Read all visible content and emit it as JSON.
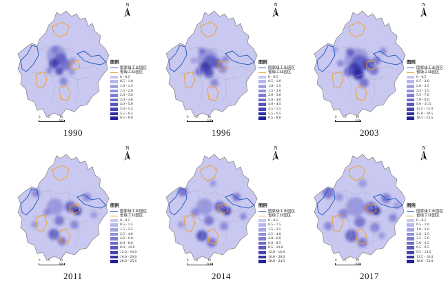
{
  "colors": {
    "base_fill": "#c9c8f0",
    "boundary": "#8a8a8a",
    "national_zone": "#2a5fbf",
    "provincial_zone": "#f0a030",
    "density_ramp": [
      "#c9c8f0",
      "#b7b6ea",
      "#a5a3e3",
      "#9290dc",
      "#7f7dd3",
      "#6d6acb",
      "#5a58c1",
      "#4746b6",
      "#3433aa",
      "#22219c",
      "#14148c"
    ]
  },
  "legend_common": {
    "title": "图例",
    "national_label": "国家级工业园区",
    "provincial_label": "省级工业园区"
  },
  "scale_bar": {
    "ticks": [
      "0",
      "5",
      "10 km"
    ]
  },
  "north_arrow": {
    "label": "N"
  },
  "panels": [
    {
      "year": "1990",
      "classes": [
        "0 - 0.5",
        "0.5 - 1.0",
        "1.0 - 1.5",
        "1.5 - 2.0",
        "2.0 - 3.0",
        "3.0 - 4.0",
        "4.0 - 5.0",
        "5.0 - 5.5",
        "5.5 - 6.5",
        "6.5 - 8.0"
      ]
    },
    {
      "year": "1996",
      "classes": [
        "0 - 0.5",
        "0.5 - 1.0",
        "1.0 - 1.5",
        "1.5 - 2.0",
        "2.0 - 3.0",
        "3.0 - 4.0",
        "4.0 - 4.5",
        "4.5 - 5.5",
        "5.5 - 6.5",
        "6.5 - 8.0"
      ]
    },
    {
      "year": "2003",
      "classes": [
        "0 - 0.5",
        "0.5 - 2.0",
        "2.0 - 3.5",
        "3.5 - 5.5",
        "5.5 - 7.0",
        "7.0 - 9.0",
        "9.0 - 11.5",
        "11.5 - 15.0",
        "15.0 - 18.5",
        "18.5 - 23.5"
      ]
    },
    {
      "year": "2011",
      "classes": [
        "0 - 0.5",
        "0.5 - 1.5",
        "1.5 - 2.5",
        "2.5 - 4.0",
        "4.0 - 6.0",
        "6.0 - 8.0",
        "8.0 - 12.0",
        "12.0 - 16.0",
        "16.0 - 20.0",
        "20.0 - 25.0"
      ]
    },
    {
      "year": "2014",
      "classes": [
        "0 - 0.5",
        "0.5 - 1.5",
        "1.5 - 2.5",
        "2.5 - 4.0",
        "4.0 - 6.0",
        "6.0 - 8.5",
        "8.5 - 12.0",
        "12.0 - 16.0",
        "16.0 - 20.0",
        "20.0 - 24.5"
      ]
    },
    {
      "year": "2017",
      "classes": [
        "0 - 0.5",
        "0.5 - 1.0",
        "1.0 - 2.0",
        "2.0 - 3.5",
        "3.5 - 5.0",
        "5.0 - 6.5",
        "6.5 - 9.5",
        "9.5 - 13.5",
        "13.5 - 18.0",
        "18.0 - 23.0"
      ]
    }
  ]
}
